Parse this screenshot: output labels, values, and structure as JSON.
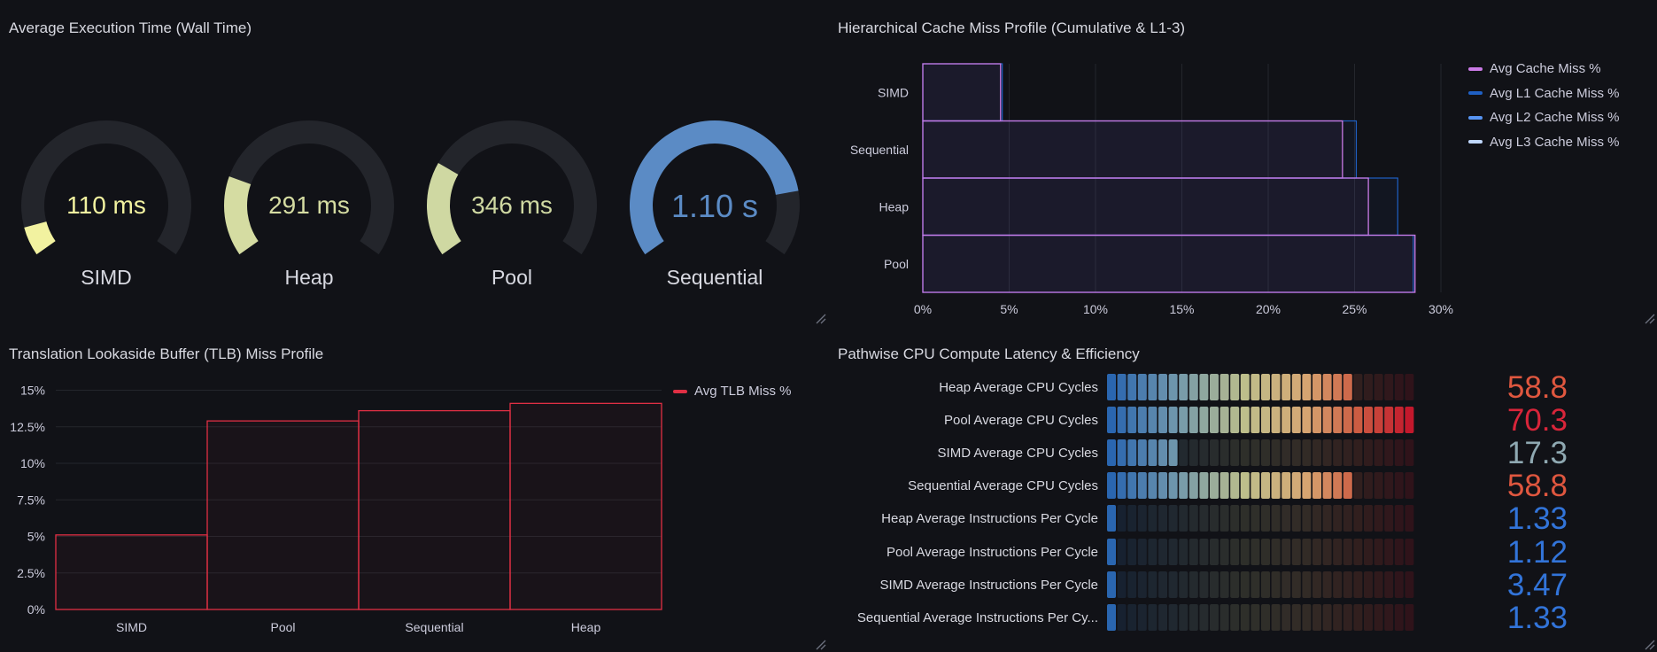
{
  "colors": {
    "background": "#111217",
    "gauge_track": "#23252b",
    "yellow_light": "#f2f2a0",
    "yellow_green": "#d0dba0",
    "blue": "#5b8bc5",
    "purple": "#ca7ae6",
    "l1_blue": "#1f60c4",
    "l2_blue": "#5794f2",
    "l3_blue": "#c0d8ff",
    "red": "#e02f44"
  },
  "panels": {
    "exec_time": {
      "title": "Average Execution Time (Wall Time)",
      "gauges": [
        {
          "label": "SIMD",
          "value": "110 ms",
          "fraction": 0.08,
          "color": "#f2f2a0"
        },
        {
          "label": "Heap",
          "value": "291 ms",
          "fraction": 0.22,
          "color": "#d5dca2"
        },
        {
          "label": "Pool",
          "value": "346 ms",
          "fraction": 0.26,
          "color": "#cfd8a2"
        },
        {
          "label": "Sequential",
          "value": "1.10 s",
          "fraction": 0.82,
          "color": "#5b8bc5"
        }
      ]
    },
    "cache": {
      "title": "Hierarchical Cache Miss Profile (Cumulative & L1-3)",
      "legend": [
        {
          "label": "Avg Cache Miss %",
          "color": "#ca7ae6"
        },
        {
          "label": "Avg L1 Cache Miss %",
          "color": "#1f60c4"
        },
        {
          "label": "Avg L2 Cache Miss %",
          "color": "#5794f2"
        },
        {
          "label": "Avg L3 Cache Miss %",
          "color": "#c0d8ff"
        }
      ]
    },
    "tlb": {
      "title": "Translation Lookaside Buffer (TLB) Miss Profile",
      "legend": [
        {
          "label": "Avg TLB Miss %",
          "color": "#e02f44"
        }
      ]
    },
    "cpu": {
      "title": "Pathwise CPU Compute Latency & Efficiency",
      "rows": [
        {
          "label": "Heap Average CPU Cycles",
          "value": "58.8",
          "fraction": 0.81,
          "value_color": "#e0573f"
        },
        {
          "label": "Pool Average CPU Cycles",
          "value": "70.3",
          "fraction": 1.0,
          "value_color": "#d9253a"
        },
        {
          "label": "SIMD Average CPU Cycles",
          "value": "17.3",
          "fraction": 0.23,
          "value_color": "#8fa9b2"
        },
        {
          "label": "Sequential Average CPU Cycles",
          "value": "58.8",
          "fraction": 0.81,
          "value_color": "#e0573f"
        },
        {
          "label": "Heap Average Instructions Per Cycle",
          "value": "1.33",
          "fraction": 0.03,
          "value_color": "#3274d9"
        },
        {
          "label": "Pool Average Instructions Per Cycle",
          "value": "1.12",
          "fraction": 0.03,
          "value_color": "#3274d9"
        },
        {
          "label": "SIMD Average Instructions Per Cycle",
          "value": "3.47",
          "fraction": 0.03,
          "value_color": "#3274d9"
        },
        {
          "label": "Sequential Average Instructions Per Cy...",
          "value": "1.33",
          "fraction": 0.03,
          "value_color": "#3274d9"
        }
      ]
    }
  },
  "chart_data": [
    {
      "type": "bar",
      "orientation": "horizontal",
      "categories": [
        "SIMD",
        "Sequential",
        "Heap",
        "Pool"
      ],
      "series": [
        {
          "name": "Avg Cache Miss %",
          "values": [
            4.5,
            24.3,
            25.8,
            28.5
          ]
        },
        {
          "name": "Avg L1 Cache Miss %",
          "values": [
            4.6,
            25.1,
            27.5,
            28.4
          ]
        },
        {
          "name": "Avg L2 Cache Miss %",
          "values": [
            0,
            0,
            0,
            0
          ]
        },
        {
          "name": "Avg L3 Cache Miss %",
          "values": [
            0,
            0,
            0,
            0
          ]
        }
      ],
      "xticks": [
        "0%",
        "5%",
        "10%",
        "15%",
        "20%",
        "25%",
        "30%"
      ],
      "xlim": [
        0,
        30.5
      ],
      "grid": true,
      "legend": "right"
    },
    {
      "type": "bar",
      "categories": [
        "SIMD",
        "Pool",
        "Sequential",
        "Heap"
      ],
      "series": [
        {
          "name": "Avg TLB Miss %",
          "values": [
            5.1,
            12.9,
            13.6,
            14.1
          ]
        }
      ],
      "yticks": [
        "0%",
        "2.5%",
        "5%",
        "7.5%",
        "10%",
        "12.5%",
        "15%"
      ],
      "ylim": [
        0,
        15
      ],
      "grid": true,
      "legend": "right"
    }
  ]
}
